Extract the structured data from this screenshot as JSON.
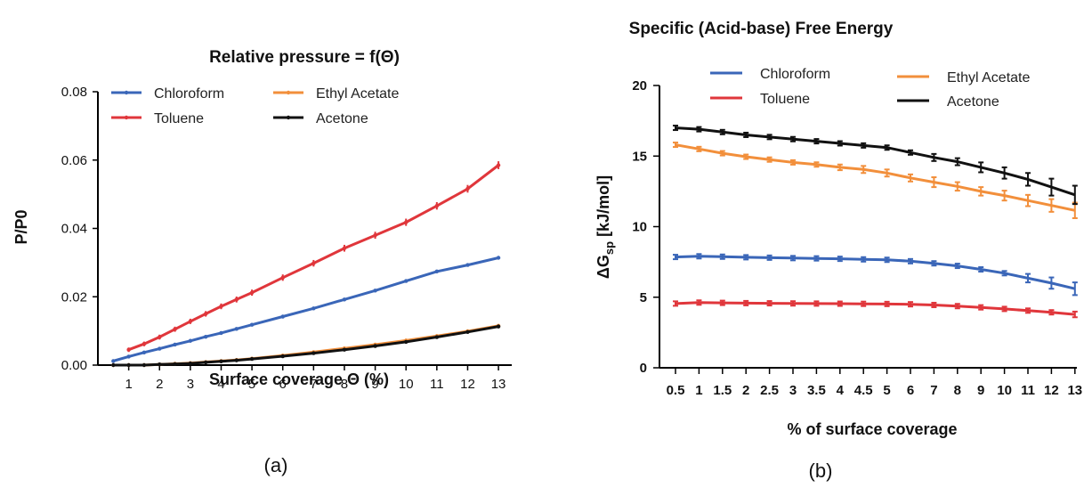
{
  "colors": {
    "chloroform": "#3a66b8",
    "toluene": "#e0363b",
    "ethyl_acetate": "#f28f3b",
    "acetone": "#111111"
  },
  "chart_data": [
    {
      "type": "line",
      "title": "Relative pressure = f(Θ)",
      "xlabel": "Surface coverage Θ (%)",
      "ylabel": "P/P0",
      "caption": "(a)",
      "xlim": [
        0,
        13.2
      ],
      "ylim": [
        0,
        0.08
      ],
      "xticks": [
        "1",
        "2",
        "3",
        "4",
        "5",
        "6",
        "7",
        "8",
        "9",
        "10",
        "11",
        "12",
        "13"
      ],
      "yticks": [
        "0.00",
        "0.02",
        "0.04",
        "0.06",
        "0.08"
      ],
      "legend_position": "top",
      "series": [
        {
          "name": "Chloroform",
          "color_key": "chloroform",
          "x": [
            0.5,
            1,
            1.5,
            2,
            2.5,
            3,
            3.5,
            4,
            4.5,
            5,
            6,
            7,
            8,
            9,
            10,
            11,
            12,
            13
          ],
          "y": [
            0.0012,
            0.0025,
            0.0037,
            0.0048,
            0.006,
            0.0071,
            0.0083,
            0.0094,
            0.0106,
            0.0118,
            0.0142,
            0.0166,
            0.0192,
            0.0218,
            0.0246,
            0.0274,
            0.0293,
            0.0314
          ]
        },
        {
          "name": "Ethyl Acetate",
          "color_key": "ethyl_acetate",
          "x": [
            0.5,
            1,
            1.5,
            2,
            2.5,
            3,
            3.5,
            4,
            4.5,
            5,
            6,
            7,
            8,
            9,
            10,
            11,
            12,
            13
          ],
          "y": [
            0,
            0,
            0,
            0.0002,
            0.0004,
            0.0006,
            0.0009,
            0.0012,
            0.0015,
            0.0019,
            0.0028,
            0.0038,
            0.0049,
            0.006,
            0.0072,
            0.0085,
            0.0099,
            0.0115
          ]
        },
        {
          "name": "Toluene",
          "color_key": "toluene",
          "x": [
            1,
            1.5,
            2,
            2.5,
            3,
            3.5,
            4,
            4.5,
            5,
            6,
            7,
            8,
            9,
            10,
            11,
            12,
            13
          ],
          "y": [
            0.0045,
            0.0062,
            0.0082,
            0.0105,
            0.0128,
            0.015,
            0.0172,
            0.0192,
            0.0212,
            0.0256,
            0.0298,
            0.0342,
            0.038,
            0.0418,
            0.0466,
            0.0516,
            0.0585
          ]
        },
        {
          "name": "Acetone",
          "color_key": "acetone",
          "x": [
            0.5,
            1,
            1.5,
            2,
            2.5,
            3,
            3.5,
            4,
            4.5,
            5,
            6,
            7,
            8,
            9,
            10,
            11,
            12,
            13
          ],
          "y": [
            0,
            0,
            0,
            0.0002,
            0.0003,
            0.0005,
            0.0008,
            0.0011,
            0.0014,
            0.0018,
            0.0026,
            0.0035,
            0.0045,
            0.0056,
            0.0068,
            0.0082,
            0.0097,
            0.0113
          ]
        }
      ]
    },
    {
      "type": "line",
      "title": "Specific (Acid-base) Free Energy",
      "xlabel": "% of surface coverage",
      "ylabel_main": "ΔG",
      "ylabel_sub": "sp",
      "ylabel_unit": " [kJ/mol]",
      "caption": "(b)",
      "categories": [
        "0.5",
        "1",
        "1.5",
        "2",
        "2.5",
        "3",
        "3.5",
        "4",
        "4.5",
        "5",
        "6",
        "7",
        "8",
        "9",
        "10",
        "11",
        "12",
        "13"
      ],
      "ylim": [
        0,
        20
      ],
      "yticks": [
        "0",
        "5",
        "10",
        "15",
        "20"
      ],
      "legend_position": "top",
      "series": [
        {
          "name": "Chloroform",
          "color_key": "chloroform",
          "values": [
            7.85,
            7.9,
            7.87,
            7.83,
            7.8,
            7.77,
            7.75,
            7.72,
            7.68,
            7.65,
            7.55,
            7.4,
            7.22,
            6.97,
            6.7,
            6.35,
            6.0,
            5.6
          ],
          "errors": [
            0.05,
            0.05,
            0.05,
            0.05,
            0.05,
            0.05,
            0.05,
            0.05,
            0.05,
            0.05,
            0.05,
            0.1,
            0.1,
            0.12,
            0.15,
            0.3,
            0.4,
            0.45
          ]
        },
        {
          "name": "Ethyl Acetate",
          "color_key": "ethyl_acetate",
          "values": [
            15.8,
            15.5,
            15.2,
            14.95,
            14.75,
            14.55,
            14.4,
            14.2,
            14.05,
            13.8,
            13.45,
            13.15,
            12.85,
            12.5,
            12.2,
            11.85,
            11.5,
            11.15
          ],
          "errors": [
            0.05,
            0.05,
            0.05,
            0.05,
            0.05,
            0.05,
            0.1,
            0.2,
            0.25,
            0.25,
            0.25,
            0.35,
            0.3,
            0.3,
            0.35,
            0.4,
            0.45,
            0.55
          ]
        },
        {
          "name": "Toluene",
          "color_key": "toluene",
          "values": [
            4.55,
            4.62,
            4.6,
            4.58,
            4.57,
            4.56,
            4.55,
            4.54,
            4.53,
            4.52,
            4.5,
            4.45,
            4.37,
            4.28,
            4.17,
            4.05,
            3.93,
            3.78
          ],
          "errors": [
            0.03,
            0.03,
            0.03,
            0.03,
            0.03,
            0.03,
            0.03,
            0.03,
            0.03,
            0.03,
            0.03,
            0.05,
            0.05,
            0.06,
            0.08,
            0.1,
            0.15,
            0.2
          ]
        },
        {
          "name": "Acetone",
          "color_key": "acetone",
          "values": [
            17.0,
            16.9,
            16.7,
            16.5,
            16.35,
            16.2,
            16.05,
            15.9,
            15.75,
            15.6,
            15.25,
            14.9,
            14.6,
            14.2,
            13.8,
            13.35,
            12.8,
            12.25
          ],
          "errors": [
            0.05,
            0.05,
            0.05,
            0.05,
            0.05,
            0.05,
            0.05,
            0.05,
            0.05,
            0.1,
            0.15,
            0.25,
            0.25,
            0.35,
            0.4,
            0.45,
            0.6,
            0.65
          ]
        }
      ]
    }
  ]
}
